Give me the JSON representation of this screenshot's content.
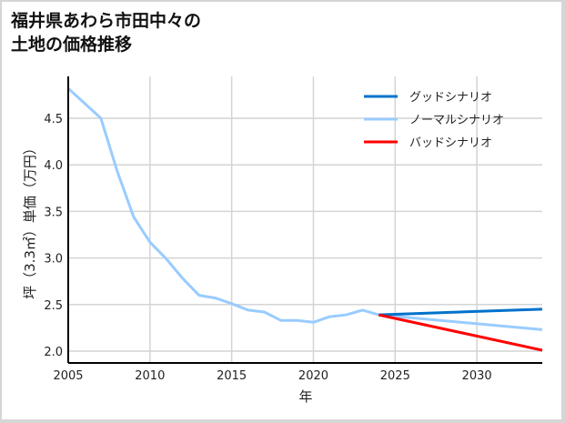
{
  "title": "福井県あわら市田中々の\n土地の価格推移",
  "chart_data": {
    "type": "line",
    "title": "福井県あわら市田中々の土地の価格推移",
    "xlabel": "年",
    "ylabel": "坪（3.3㎡）単価（万円）",
    "xlim": [
      2005,
      2034
    ],
    "ylim": [
      1.87,
      4.95
    ],
    "x_ticks": [
      2005,
      2010,
      2015,
      2020,
      2025,
      2030
    ],
    "y_ticks": [
      2.0,
      2.5,
      3.0,
      3.5,
      4.0,
      4.5
    ],
    "x_tick_labels": [
      "2005",
      "2010",
      "2015",
      "2020",
      "2025",
      "2030"
    ],
    "y_tick_labels": [
      "2.0",
      "2.5",
      "3.0",
      "3.5",
      "4.0",
      "4.5"
    ],
    "grid": true,
    "legend_position": "upper right",
    "series": [
      {
        "name": "グッドシナリオ",
        "color": "#0072cc",
        "x": [
          2024,
          2034
        ],
        "values": [
          2.39,
          2.45
        ]
      },
      {
        "name": "ノーマルシナリオ",
        "color": "#99ccff",
        "x": [
          2005,
          2006,
          2007,
          2008,
          2009,
          2010,
          2011,
          2012,
          2013,
          2014,
          2015,
          2016,
          2017,
          2018,
          2019,
          2020,
          2021,
          2022,
          2023,
          2024,
          2034
        ],
        "values": [
          4.82,
          4.66,
          4.5,
          3.93,
          3.44,
          3.17,
          2.99,
          2.78,
          2.6,
          2.57,
          2.51,
          2.44,
          2.42,
          2.33,
          2.33,
          2.31,
          2.37,
          2.39,
          2.44,
          2.39,
          2.23
        ]
      },
      {
        "name": "バッドシナリオ",
        "color": "#ff0000",
        "x": [
          2024,
          2034
        ],
        "values": [
          2.39,
          2.01
        ]
      }
    ]
  }
}
